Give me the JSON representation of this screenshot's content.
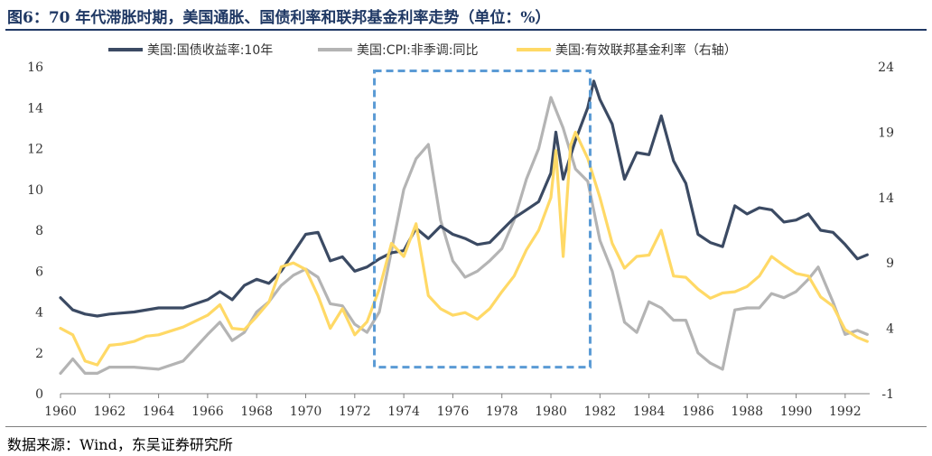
{
  "title": "图6：70 年代滞胀时期，美国通胀、国债利率和联邦基金利率走势（单位：%）",
  "source": "数据来源：Wind，东吴证券研究所",
  "colors": {
    "ust10y": "#3b4a63",
    "cpi": "#b4b4b4",
    "ffr": "#ffd966",
    "box": "#5b9bd5"
  },
  "chart_data": {
    "type": "line",
    "legend": [
      "美国:国债收益率:10年",
      "美国:CPI:非季调:同比",
      "美国:有效联邦基金利率（右轴）"
    ],
    "legend_position": "top",
    "x_ticks": [
      "1960",
      "1962",
      "1964",
      "1966",
      "1968",
      "1970",
      "1972",
      "1974",
      "1976",
      "1978",
      "1980",
      "1982",
      "1984",
      "1986",
      "1988",
      "1990",
      "1992"
    ],
    "xlim": [
      1960,
      1993
    ],
    "y_left_ticks": [
      "0",
      "2",
      "4",
      "6",
      "8",
      "10",
      "12",
      "14",
      "16"
    ],
    "y_left_range": [
      0,
      16
    ],
    "y_right_ticks": [
      "-1",
      "4",
      "9",
      "14",
      "19",
      "24"
    ],
    "y_right_range": [
      -1,
      24
    ],
    "grid": false,
    "highlight_box": {
      "x_from": 1972.8,
      "x_to": 1981.6,
      "y_from": 1.3,
      "y_to": 15.8,
      "axis": "left"
    },
    "series": [
      {
        "name": "美国:国债收益率:10年",
        "axis": "left",
        "x": [
          1960.0,
          1960.5,
          1961.0,
          1961.5,
          1962.0,
          1963.0,
          1964.0,
          1965.0,
          1966.0,
          1966.5,
          1967.0,
          1967.5,
          1968.0,
          1968.5,
          1969.0,
          1969.5,
          1970.0,
          1970.5,
          1971.0,
          1971.5,
          1972.0,
          1972.5,
          1973.0,
          1973.5,
          1974.0,
          1974.5,
          1975.0,
          1975.5,
          1976.0,
          1976.5,
          1977.0,
          1977.5,
          1978.0,
          1978.5,
          1979.0,
          1979.5,
          1980.0,
          1980.2,
          1980.5,
          1981.0,
          1981.5,
          1981.75,
          1982.0,
          1982.5,
          1983.0,
          1983.5,
          1984.0,
          1984.5,
          1985.0,
          1985.5,
          1986.0,
          1986.5,
          1987.0,
          1987.5,
          1988.0,
          1988.5,
          1989.0,
          1989.5,
          1990.0,
          1990.5,
          1991.0,
          1991.5,
          1992.0,
          1992.5,
          1992.9
        ],
        "y": [
          4.7,
          4.1,
          3.9,
          3.8,
          3.9,
          4.0,
          4.2,
          4.2,
          4.6,
          5.0,
          4.6,
          5.3,
          5.6,
          5.4,
          6.0,
          6.9,
          7.8,
          7.9,
          6.5,
          6.7,
          6.0,
          6.2,
          6.6,
          6.9,
          7.0,
          8.1,
          7.6,
          8.2,
          7.8,
          7.6,
          7.3,
          7.4,
          8.0,
          8.6,
          9.0,
          9.4,
          10.8,
          12.8,
          10.5,
          12.4,
          14.0,
          15.3,
          14.4,
          13.2,
          10.5,
          11.8,
          11.7,
          13.6,
          11.4,
          10.3,
          7.8,
          7.4,
          7.2,
          9.2,
          8.8,
          9.1,
          9.0,
          8.4,
          8.5,
          8.8,
          8.0,
          7.9,
          7.3,
          6.6,
          6.8
        ]
      },
      {
        "name": "美国:CPI:非季调:同比",
        "axis": "left",
        "x": [
          1960.0,
          1960.5,
          1961.0,
          1961.5,
          1962.0,
          1963.0,
          1964.0,
          1965.0,
          1966.0,
          1966.5,
          1967.0,
          1967.5,
          1968.0,
          1968.5,
          1969.0,
          1969.5,
          1970.0,
          1970.5,
          1971.0,
          1971.5,
          1972.0,
          1972.5,
          1973.0,
          1973.5,
          1974.0,
          1974.5,
          1975.0,
          1975.5,
          1976.0,
          1976.5,
          1977.0,
          1977.5,
          1978.0,
          1978.5,
          1979.0,
          1979.5,
          1980.0,
          1980.5,
          1981.0,
          1981.5,
          1982.0,
          1982.5,
          1983.0,
          1983.5,
          1984.0,
          1984.5,
          1985.0,
          1985.5,
          1986.0,
          1986.5,
          1987.0,
          1987.5,
          1988.0,
          1988.5,
          1989.0,
          1989.5,
          1990.0,
          1990.5,
          1990.9,
          1991.5,
          1992.0,
          1992.5,
          1992.9
        ],
        "y": [
          1.0,
          1.7,
          1.0,
          1.0,
          1.3,
          1.3,
          1.2,
          1.6,
          2.9,
          3.5,
          2.6,
          3.0,
          4.0,
          4.5,
          5.3,
          5.8,
          6.1,
          5.7,
          4.4,
          4.3,
          3.4,
          3.0,
          4.0,
          7.0,
          10.0,
          11.5,
          12.2,
          8.5,
          6.5,
          5.7,
          6.0,
          6.5,
          7.1,
          8.5,
          10.5,
          12.0,
          14.5,
          13.0,
          11.0,
          10.4,
          7.5,
          6.0,
          3.5,
          3.0,
          4.5,
          4.2,
          3.6,
          3.6,
          2.0,
          1.5,
          1.2,
          4.1,
          4.2,
          4.2,
          4.9,
          4.7,
          5.0,
          5.6,
          6.2,
          4.5,
          2.9,
          3.1,
          2.9
        ]
      },
      {
        "name": "美国:有效联邦基金利率（右轴）",
        "axis": "right",
        "x": [
          1960.0,
          1960.5,
          1961.0,
          1961.5,
          1962.0,
          1962.5,
          1963.0,
          1963.5,
          1964.0,
          1965.0,
          1966.0,
          1966.5,
          1967.0,
          1967.5,
          1968.0,
          1968.5,
          1969.0,
          1969.5,
          1970.0,
          1970.5,
          1971.0,
          1971.5,
          1972.0,
          1972.5,
          1973.0,
          1973.5,
          1974.0,
          1974.5,
          1975.0,
          1975.5,
          1976.0,
          1976.5,
          1977.0,
          1977.5,
          1978.0,
          1978.5,
          1979.0,
          1979.5,
          1980.0,
          1980.2,
          1980.5,
          1980.8,
          1981.0,
          1981.5,
          1982.0,
          1982.5,
          1983.0,
          1983.5,
          1984.0,
          1984.5,
          1985.0,
          1985.5,
          1986.0,
          1986.5,
          1987.0,
          1987.5,
          1988.0,
          1988.5,
          1989.0,
          1989.5,
          1990.0,
          1990.5,
          1991.0,
          1991.5,
          1992.0,
          1992.5,
          1992.9
        ],
        "y": [
          4.0,
          3.5,
          1.5,
          1.2,
          2.7,
          2.8,
          3.0,
          3.4,
          3.5,
          4.1,
          5.0,
          5.8,
          4.0,
          3.9,
          4.9,
          6.0,
          8.7,
          9.0,
          8.5,
          6.5,
          4.0,
          5.5,
          3.5,
          4.5,
          7.0,
          10.5,
          9.5,
          12.0,
          6.5,
          5.5,
          5.0,
          5.2,
          4.7,
          5.5,
          6.8,
          8.0,
          10.0,
          11.5,
          14.0,
          17.6,
          9.5,
          18.0,
          19.0,
          17.0,
          14.0,
          10.5,
          8.6,
          9.5,
          9.6,
          11.5,
          8.0,
          7.9,
          7.0,
          6.3,
          6.7,
          6.8,
          7.2,
          8.0,
          9.5,
          8.8,
          8.2,
          8.0,
          6.4,
          5.7,
          3.9,
          3.3,
          3.0
        ]
      }
    ]
  }
}
